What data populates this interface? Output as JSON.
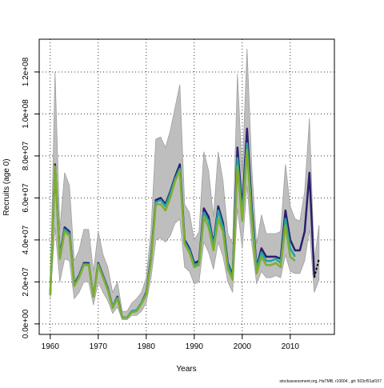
{
  "chart_data": {
    "type": "line",
    "xlabel": "Years",
    "ylabel": "Recruits (age 0)",
    "footnote": "stockassessment.org, HaTMB, r10604 , git: 503cf91af157",
    "x": [
      1960,
      1961,
      1962,
      1963,
      1964,
      1965,
      1966,
      1967,
      1968,
      1969,
      1970,
      1971,
      1972,
      1973,
      1974,
      1975,
      1976,
      1977,
      1978,
      1979,
      1980,
      1981,
      1982,
      1983,
      1984,
      1985,
      1986,
      1987,
      1988,
      1989,
      1990,
      1991,
      1992,
      1993,
      1994,
      1995,
      1996,
      1997,
      1998,
      1999,
      2000,
      2001,
      2002,
      2003,
      2004,
      2005,
      2006,
      2007,
      2008,
      2009,
      2010,
      2011,
      2012,
      2013,
      2014,
      2015,
      2016
    ],
    "band": {
      "color": "#bebebe",
      "upper": [
        16000000.0,
        120000000.0,
        45000000.0,
        72000000.0,
        66000000.0,
        30000000.0,
        35000000.0,
        45000000.0,
        45000000.0,
        25000000.0,
        44000000.0,
        33000000.0,
        27000000.0,
        15000000.0,
        20000000.0,
        6000000.0,
        6000000.0,
        10000000.0,
        12000000.0,
        15000000.0,
        22000000.0,
        45000000.0,
        88000000.0,
        89000000.0,
        84000000.0,
        92000000.0,
        103000000.0,
        114000000.0,
        57000000.0,
        53000000.0,
        40000000.0,
        44000000.0,
        82000000.0,
        73000000.0,
        51000000.0,
        82000000.0,
        68000000.0,
        43000000.0,
        38000000.0,
        119000000.0,
        72000000.0,
        131000000.0,
        74000000.0,
        38000000.0,
        52000000.0,
        43000000.0,
        43000000.0,
        43000000.0,
        44000000.0,
        76000000.0,
        56000000.0,
        50000000.0,
        49000000.0,
        63000000.0,
        98000000.0,
        30000000.0,
        47000000.0
      ],
      "lower": [
        12000000.0,
        46000000.0,
        20000000.0,
        31000000.0,
        30000000.0,
        12000000.0,
        15000000.0,
        20000000.0,
        20000000.0,
        9000000.0,
        20000000.0,
        15000000.0,
        11000000.0,
        5000000.0,
        8000000.0,
        2000000.0,
        2000000.0,
        4000000.0,
        4000000.0,
        6000000.0,
        10000000.0,
        22000000.0,
        40000000.0,
        41000000.0,
        39000000.0,
        42000000.0,
        48000000.0,
        50000000.0,
        27000000.0,
        25000000.0,
        19000000.0,
        20000000.0,
        39000000.0,
        34000000.0,
        26000000.0,
        39000000.0,
        32000000.0,
        20000000.0,
        15000000.0,
        55000000.0,
        36000000.0,
        66000000.0,
        38000000.0,
        19000000.0,
        25000000.0,
        22000000.0,
        22000000.0,
        23000000.0,
        22000000.0,
        33000000.0,
        25000000.0,
        24000000.0,
        24000000.0,
        30000000.0,
        45000000.0,
        15000000.0,
        21000000.0
      ]
    },
    "series": [
      {
        "color": "#2c1f6e",
        "values": [
          13700000.0,
          76000000.0,
          32000000.0,
          46000000.0,
          44000000.0,
          19000000.0,
          23000000.0,
          29000000.0,
          29000000.0,
          13000000.0,
          29000000.0,
          23000000.0,
          17000000.0,
          8000000.0,
          13000000.0,
          3000000.0,
          3000000.0,
          6000000.0,
          6500000.0,
          10000000.0,
          15000000.0,
          32000000.0,
          59000000.0,
          60000000.0,
          57000000.0,
          63000000.0,
          70000000.0,
          76000000.0,
          40000000.0,
          36000000.0,
          29000000.0,
          30000000.0,
          55000000.0,
          51000000.0,
          38000000.0,
          56000000.0,
          48000000.0,
          29000000.0,
          23000000.0,
          84000000.0,
          55000000.0,
          93000000.0,
          55000000.0,
          27000000.0,
          36000000.0,
          32000000.0,
          32000000.0,
          32000000.0,
          31000000.0,
          54000000.0,
          40000000.0,
          35000000.0,
          35000000.0,
          44000000.0,
          72000000.0,
          23000000.0,
          null
        ]
      },
      {
        "color": "#1fa5a5",
        "values": [
          13700000.0,
          75000000.0,
          31000000.0,
          45000000.0,
          43000000.0,
          18500000.0,
          22500000.0,
          28500000.0,
          28500000.0,
          13000000.0,
          28500000.0,
          22500000.0,
          16500000.0,
          8000000.0,
          12500000.0,
          3000000.0,
          3000000.0,
          6000000.0,
          6500000.0,
          10000000.0,
          14500000.0,
          31000000.0,
          58000000.0,
          59000000.0,
          56000000.0,
          62000000.0,
          69000000.0,
          74000000.0,
          39000000.0,
          35000000.0,
          28000000.0,
          29000000.0,
          53000000.0,
          49000000.0,
          37000000.0,
          54000000.0,
          46000000.0,
          28000000.0,
          22000000.0,
          79000000.0,
          52000000.0,
          86000000.0,
          52000000.0,
          26000000.0,
          34000000.0,
          30000000.0,
          30000000.0,
          31000000.0,
          29000000.0,
          50000000.0,
          36000000.0,
          32000000.0,
          null,
          null,
          null,
          null,
          null
        ]
      },
      {
        "color": "#7fae2f",
        "values": [
          13700000.0,
          75000000.0,
          31000000.0,
          44000000.0,
          42000000.0,
          18000000.0,
          22000000.0,
          28000000.0,
          28000000.0,
          13000000.0,
          28000000.0,
          22000000.0,
          16000000.0,
          7500000.0,
          12000000.0,
          3000000.0,
          3000000.0,
          5500000.0,
          6000000.0,
          9500000.0,
          14000000.0,
          30000000.0,
          57000000.0,
          57000000.0,
          54000000.0,
          60000000.0,
          68000000.0,
          73000000.0,
          38000000.0,
          34000000.0,
          27000000.0,
          28000000.0,
          51000000.0,
          46000000.0,
          35000000.0,
          50000000.0,
          44000000.0,
          26000000.0,
          21000000.0,
          75000000.0,
          49000000.0,
          83000000.0,
          49000000.0,
          24000000.0,
          32000000.0,
          28000000.0,
          28000000.0,
          29000000.0,
          27000000.0,
          47000000.0,
          32000000.0,
          30000000.0,
          null,
          null,
          null,
          null,
          null
        ]
      },
      {
        "color": "#000000",
        "dashed": true,
        "values": [
          null,
          null,
          null,
          null,
          null,
          null,
          null,
          null,
          null,
          null,
          null,
          null,
          null,
          null,
          null,
          null,
          null,
          null,
          null,
          null,
          null,
          null,
          null,
          null,
          null,
          null,
          null,
          null,
          null,
          null,
          null,
          null,
          null,
          null,
          null,
          null,
          null,
          null,
          null,
          null,
          null,
          null,
          null,
          null,
          null,
          null,
          null,
          null,
          null,
          null,
          null,
          null,
          null,
          null,
          null,
          22000000.0,
          31000000.0
        ]
      }
    ],
    "xlim": [
      1957.7,
      2019.2
    ],
    "xticks": [
      1960,
      1970,
      1980,
      1990,
      2000,
      2010
    ],
    "ylim": [
      -5000000,
      135600000
    ],
    "yticks": [
      {
        "value": 0,
        "label": "0.0e+00"
      },
      {
        "value": 20000000,
        "label": "2.0e+07"
      },
      {
        "value": 40000000,
        "label": "4.0e+07"
      },
      {
        "value": 60000000,
        "label": "6.0e+07"
      },
      {
        "value": 80000000,
        "label": "8.0e+07"
      },
      {
        "value": 100000000,
        "label": "1.0e+08"
      },
      {
        "value": 120000000,
        "label": "1.2e+08"
      }
    ],
    "grid": true
  }
}
